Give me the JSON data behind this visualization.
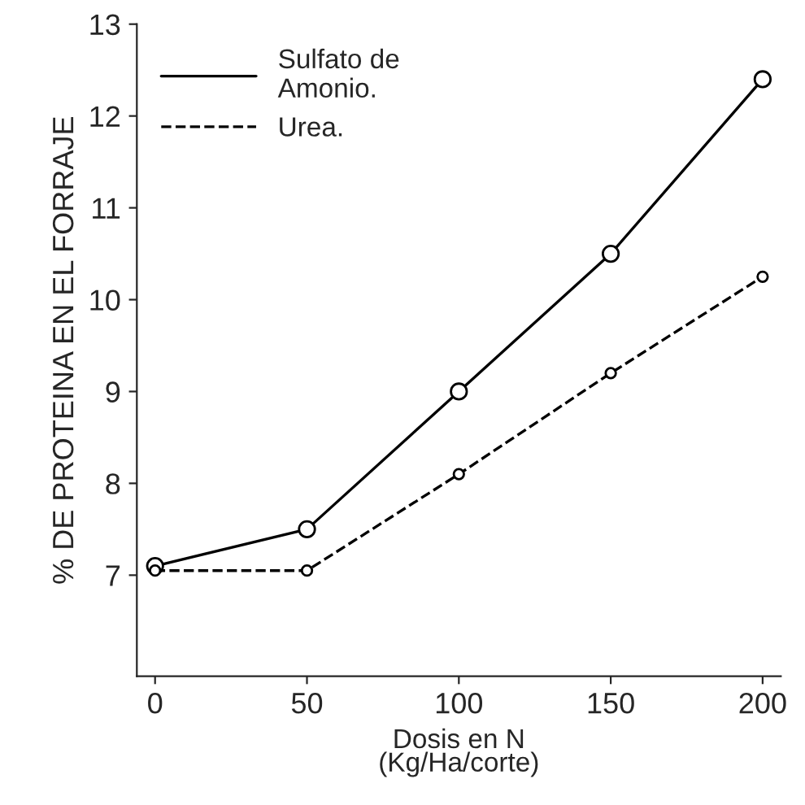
{
  "chart_data": {
    "type": "line",
    "xlabel": "Dosis en N\n(Kg/Ha/corte)",
    "ylabel": "% DE PROTEINA EN EL FORRAJE",
    "x": [
      0,
      50,
      100,
      150,
      200
    ],
    "series": [
      {
        "name": "Sulfato de\nAmonio.",
        "color": "#000000",
        "line_style": "solid",
        "values": [
          7.1,
          7.5,
          9.0,
          10.5,
          12.4
        ]
      },
      {
        "name": "Urea.",
        "color": "#000000",
        "line_style": "dashed",
        "values": [
          7.05,
          7.05,
          8.1,
          9.2,
          10.25
        ]
      }
    ],
    "marker": "circle",
    "legend": "top left",
    "grid": false,
    "xlim": [
      -6,
      206
    ],
    "xticks": [
      0,
      50,
      100,
      150,
      200
    ],
    "ylim": [
      5.9,
      13
    ],
    "yticks": [
      7,
      8,
      9,
      10,
      11,
      12,
      13
    ]
  }
}
